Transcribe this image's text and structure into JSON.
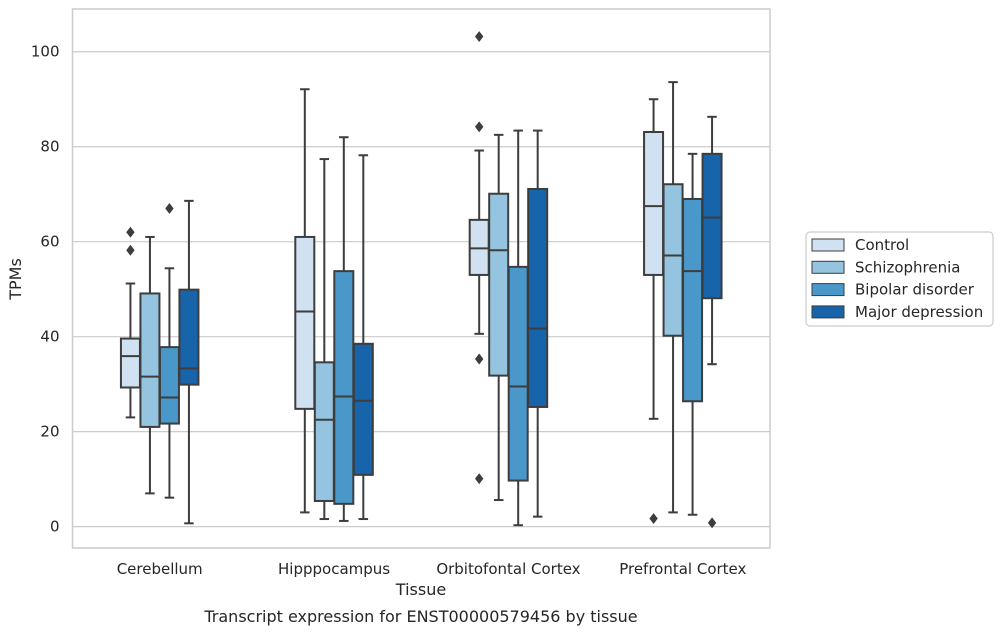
{
  "chart_data": {
    "type": "boxplot",
    "caption": "Transcript expression for ENST00000579456 by tissue",
    "xlabel": "Tissue",
    "ylabel": "TPMs",
    "ylim": [
      -4.5,
      109
    ],
    "yticks": [
      0,
      20,
      40,
      60,
      80,
      100
    ],
    "grid": "horizontal",
    "legend_position": "right",
    "categories": [
      "Cerebellum",
      "Hipppocampus",
      "Orbitofontal Cortex",
      "Prefrontal Cortex"
    ],
    "series": [
      {
        "name": "Control",
        "color": "#d0e1f2",
        "boxes": [
          {
            "whislo": 23,
            "q1": 29.3,
            "med": 35.9,
            "q3": 39.6,
            "whishi": 51.2,
            "fliers": [
              58.2,
              62
            ]
          },
          {
            "whislo": 3,
            "q1": 24.8,
            "med": 45.3,
            "q3": 61,
            "whishi": 92.1,
            "fliers": []
          },
          {
            "whislo": 40.6,
            "q1": 53,
            "med": 58.6,
            "q3": 64.6,
            "whishi": 79.2,
            "fliers": [
              103.2,
              84.2,
              35.3,
              10.1
            ]
          },
          {
            "whislo": 22.7,
            "q1": 53,
            "med": 67.5,
            "q3": 83.1,
            "whishi": 90,
            "fliers": [
              1.7
            ]
          }
        ]
      },
      {
        "name": "Schizophrenia",
        "color": "#94c4df",
        "boxes": [
          {
            "whislo": 7,
            "q1": 21,
            "med": 31.6,
            "q3": 49.1,
            "whishi": 61,
            "fliers": []
          },
          {
            "whislo": 1.6,
            "q1": 5.4,
            "med": 22.5,
            "q3": 34.6,
            "whishi": 77.4,
            "fliers": []
          },
          {
            "whislo": 5.6,
            "q1": 31.8,
            "med": 58.2,
            "q3": 70.1,
            "whishi": 82.5,
            "fliers": []
          },
          {
            "whislo": 3,
            "q1": 40.2,
            "med": 57.1,
            "q3": 72.1,
            "whishi": 93.6,
            "fliers": []
          }
        ]
      },
      {
        "name": "Bipolar disorder",
        "color": "#4a98c9",
        "boxes": [
          {
            "whislo": 6.1,
            "q1": 21.7,
            "med": 27.2,
            "q3": 37.8,
            "whishi": 54.4,
            "fliers": [
              67
            ]
          },
          {
            "whislo": 1.2,
            "q1": 4.8,
            "med": 27.4,
            "q3": 53.8,
            "whishi": 82,
            "fliers": []
          },
          {
            "whislo": 0.3,
            "q1": 9.7,
            "med": 29.5,
            "q3": 54.7,
            "whishi": 83.4,
            "fliers": []
          },
          {
            "whislo": 2.5,
            "q1": 26.4,
            "med": 53.8,
            "q3": 69,
            "whishi": 78.5,
            "fliers": []
          }
        ]
      },
      {
        "name": "Major depression",
        "color": "#1764ab",
        "boxes": [
          {
            "whislo": 0.7,
            "q1": 29.9,
            "med": 33.3,
            "q3": 49.9,
            "whishi": 68.6,
            "fliers": []
          },
          {
            "whislo": 1.6,
            "q1": 10.9,
            "med": 26.5,
            "q3": 38.5,
            "whishi": 78.2,
            "fliers": []
          },
          {
            "whislo": 2.1,
            "q1": 25.2,
            "med": 41.7,
            "q3": 71.1,
            "whishi": 83.4,
            "fliers": []
          },
          {
            "whislo": 34.2,
            "q1": 48.1,
            "med": 65.1,
            "q3": 78.5,
            "whishi": 86.3,
            "fliers": [
              0.8
            ]
          }
        ]
      }
    ]
  },
  "colors": {
    "edge": "#3d3d3d",
    "grid": "#cccccc",
    "spine": "#cccccc",
    "text": "#262626"
  }
}
